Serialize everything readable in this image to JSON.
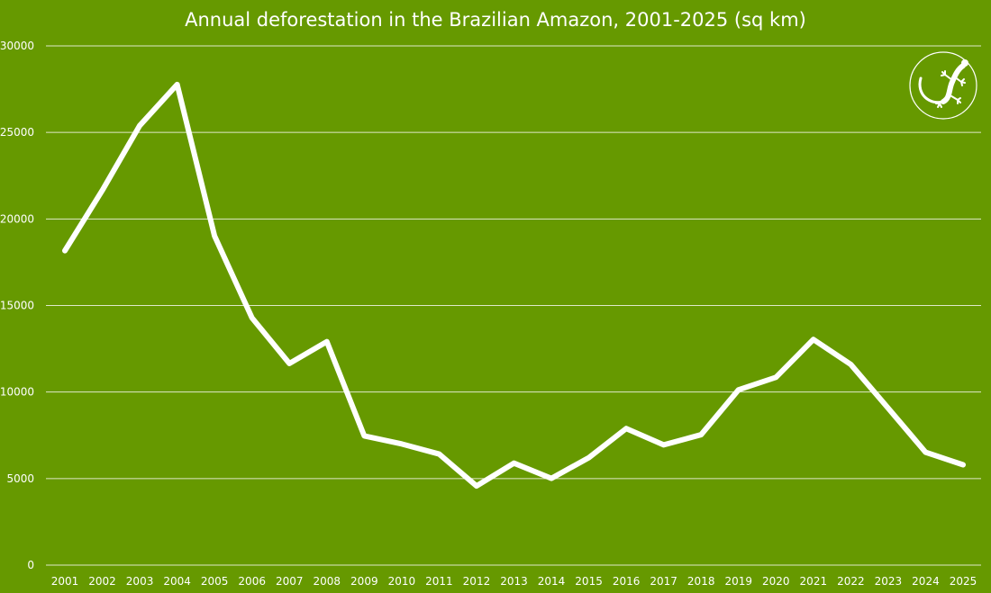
{
  "chart_data": {
    "type": "line",
    "title": "Annual deforestation in the Brazilian Amazon, 2001-2025 (sq km)",
    "xlabel": "",
    "ylabel": "",
    "x": [
      "2001",
      "2002",
      "2003",
      "2004",
      "2005",
      "2006",
      "2007",
      "2008",
      "2009",
      "2010",
      "2011",
      "2012",
      "2013",
      "2014",
      "2015",
      "2016",
      "2017",
      "2018",
      "2019",
      "2020",
      "2021",
      "2022",
      "2023",
      "2024",
      "2025"
    ],
    "series": [
      {
        "values": [
          18165,
          21650,
          25396,
          27772,
          19014,
          14286,
          11651,
          12911,
          7464,
          7000,
          6418,
          4571,
          5891,
          5012,
          6207,
          7893,
          6947,
          7536,
          10129,
          10851,
          13038,
          11594,
          9064,
          6518,
          5796
        ]
      }
    ],
    "ylim": [
      0,
      30000
    ],
    "yticks": [
      0,
      5000,
      10000,
      15000,
      20000,
      25000,
      30000
    ],
    "grid": "horizontal",
    "legend": "none",
    "colors": {
      "background": "#669900",
      "line": "#ffffff",
      "grid": "#dfe9c9",
      "text": "#ffffff"
    },
    "logo_icon": "gecko-icon"
  }
}
